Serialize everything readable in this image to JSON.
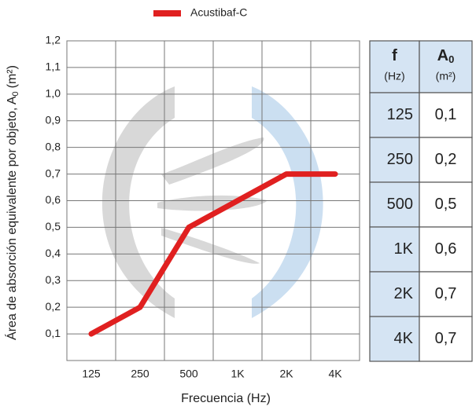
{
  "chart_data": {
    "type": "line",
    "ylabel": [
      "Área de absorción equivalente por objeto, A",
      "0",
      "(m²)"
    ],
    "xlabel": "Frecuencia (Hz)",
    "categories": [
      "125",
      "250",
      "500",
      "1K",
      "2K",
      "4K"
    ],
    "series": [
      {
        "name": "Acustibaf-C",
        "color": "#e02020",
        "values": [
          0.1,
          0.2,
          0.5,
          0.6,
          0.7,
          0.7
        ]
      }
    ],
    "ylim": [
      0,
      1.2
    ],
    "yticks": [
      {
        "value": 0.1,
        "label": "0,1"
      },
      {
        "value": 0.2,
        "label": "0,2"
      },
      {
        "value": 0.3,
        "label": "0,3"
      },
      {
        "value": 0.4,
        "label": "0,4"
      },
      {
        "value": 0.5,
        "label": "0,5"
      },
      {
        "value": 0.6,
        "label": "0,6"
      },
      {
        "value": 0.7,
        "label": "0,7"
      },
      {
        "value": 0.8,
        "label": "0,8"
      },
      {
        "value": 0.9,
        "label": "0,9"
      },
      {
        "value": 1.0,
        "label": "1,0"
      },
      {
        "value": 1.1,
        "label": "1,1"
      },
      {
        "value": 1.2,
        "label": "1,2"
      }
    ],
    "grid": true
  },
  "table": {
    "header": [
      {
        "symbol": "f",
        "unit": "(Hz)"
      },
      {
        "symbol": "A",
        "subscript": "0",
        "unit": "(m²)"
      }
    ],
    "rows": [
      [
        "125",
        "0,1"
      ],
      [
        "250",
        "0,2"
      ],
      [
        "500",
        "0,5"
      ],
      [
        "1K",
        "0,6"
      ],
      [
        "2K",
        "0,7"
      ],
      [
        "4K",
        "0,7"
      ]
    ]
  }
}
